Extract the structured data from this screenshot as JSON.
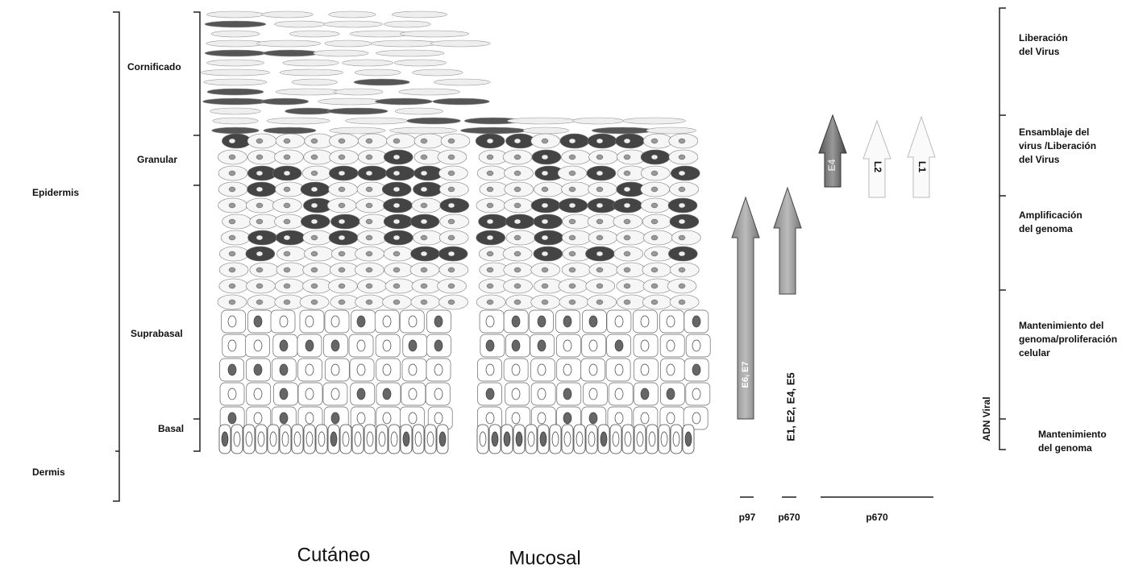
{
  "left": {
    "epidermis": "Epidermis",
    "dermis": "Dermis"
  },
  "layers": {
    "cornified": "Cornificado",
    "granular": "Granular",
    "suprabasal": "Suprabasal",
    "basal": "Basal"
  },
  "captions": {
    "cutaneous": "Cutáneo",
    "mucosal": "Mucosal"
  },
  "arrows": {
    "a1": "E6, E7",
    "a2": "E1, E2, E4, E5",
    "a3": "E4",
    "a4": "L2",
    "a5": "L1"
  },
  "promoters": [
    "p97",
    "p670",
    "p670"
  ],
  "right": {
    "title": "ADN Viral",
    "stages": [
      [
        "Liberación",
        "del Virus"
      ],
      [
        "Ensamblaje del",
        "virus /Liberación",
        "del Virus"
      ],
      [
        "Amplificación",
        "del genoma"
      ],
      [
        "Mantenimiento del",
        "genoma/proliferación",
        "celular"
      ],
      [
        "Mantenimiento",
        "del genoma"
      ]
    ]
  }
}
